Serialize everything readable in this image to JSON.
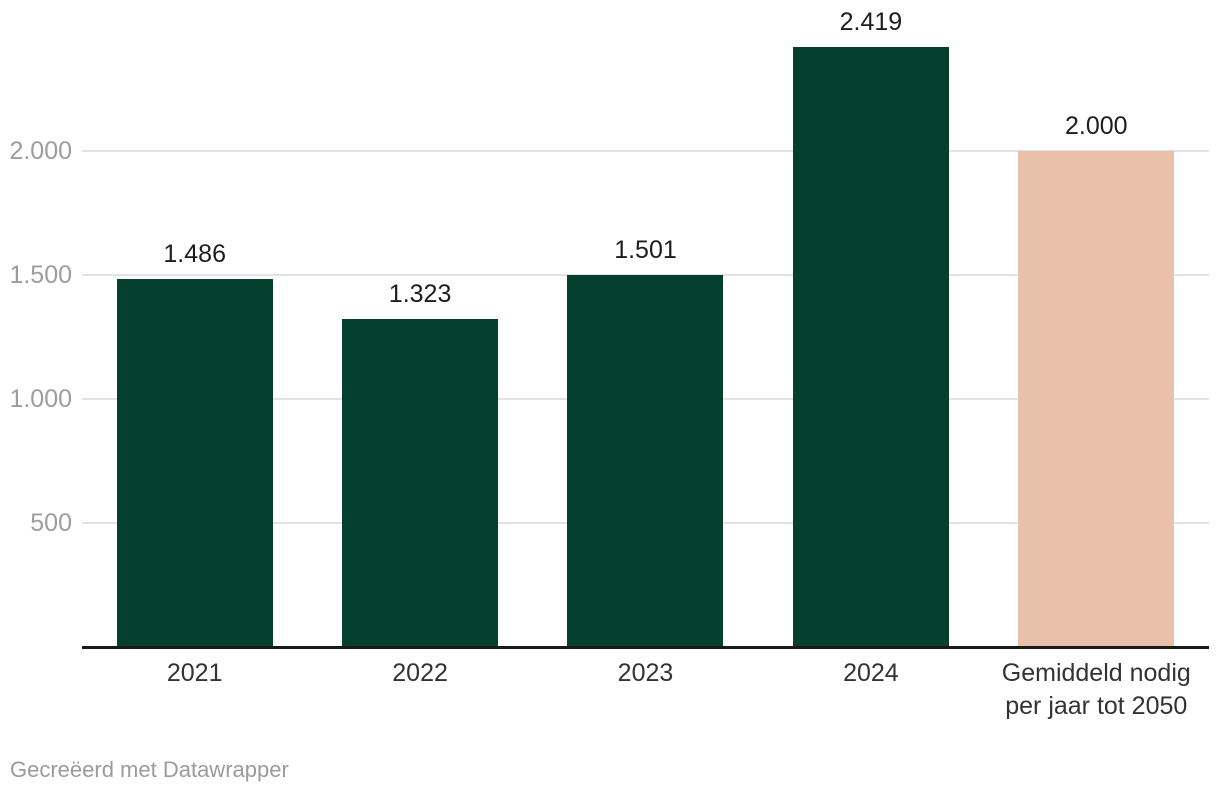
{
  "chart_data": {
    "type": "bar",
    "categories": [
      "2021",
      "2022",
      "2023",
      "2024",
      "Gemiddeld nodig\nper jaar tot 2050"
    ],
    "values": [
      1486,
      1323,
      1501,
      2419,
      2000
    ],
    "value_labels": [
      "1.486",
      "1.323",
      "1.501",
      "2.419",
      "2.000"
    ],
    "bar_colors": [
      "#053f2d",
      "#053f2d",
      "#053f2d",
      "#053f2d",
      "#e9c0aa"
    ],
    "title": "",
    "xlabel": "",
    "ylabel": "",
    "ylim": [
      0,
      2609
    ],
    "yticks": [
      {
        "value": 500,
        "label": "500"
      },
      {
        "value": 1000,
        "label": "1.000"
      },
      {
        "value": 1500,
        "label": "1.500"
      },
      {
        "value": 2000,
        "label": "2.000"
      }
    ],
    "grid": true,
    "legend": "none"
  },
  "footer": {
    "credit": "Gecreëerd met Datawrapper"
  },
  "colors": {
    "bar_green": "#053f2d",
    "bar_pink": "#e9c0aa",
    "gridline": "#e3e3e3",
    "axis_line": "#1a1a1a",
    "tick_label": "#9d9d9d",
    "value_label": "#1d1d1d",
    "category_label": "#333333",
    "credit_text": "#9b9b9b"
  }
}
